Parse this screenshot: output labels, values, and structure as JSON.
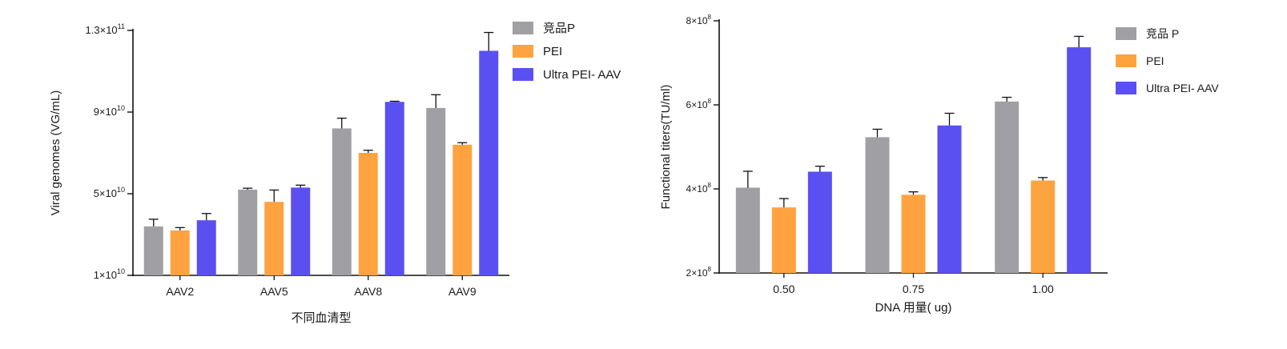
{
  "colors": {
    "series": [
      "#a0a0a4",
      "#ffa340",
      "#5a50f2"
    ],
    "axis": "#111111",
    "text": "#1a1a1a"
  },
  "chart_data": [
    {
      "type": "bar",
      "title": "",
      "xlabel": "不同血清型",
      "ylabel": "Viral genomes (VG/mL)",
      "categories": [
        "AAV2",
        "AAV5",
        "AAV8",
        "AAV9"
      ],
      "ylim": [
        10000000000,
        130000000000
      ],
      "y_ticks": [
        {
          "value": 10000000000,
          "mant": "1×10",
          "exp": "10"
        },
        {
          "value": 50000000000,
          "mant": "5×10",
          "exp": "10"
        },
        {
          "value": 90000000000,
          "mant": "9×10",
          "exp": "10"
        },
        {
          "value": 130000000000,
          "mant": "1.3×10",
          "exp": "11"
        }
      ],
      "legend_position": "top-right",
      "series": [
        {
          "name": "竞品P",
          "values": [
            34000000000,
            52000000000,
            82000000000,
            92000000000
          ],
          "errors": [
            3500000000,
            700000000,
            5000000000,
            6500000000
          ]
        },
        {
          "name": "PEI",
          "values": [
            32000000000,
            46000000000,
            70000000000,
            74000000000
          ],
          "errors": [
            1400000000,
            5800000000,
            1300000000,
            1000000000
          ]
        },
        {
          "name": "Ultra PEI- AAV",
          "values": [
            37000000000,
            53000000000,
            95000000000,
            120000000000
          ],
          "errors": [
            3300000000,
            1200000000,
            300000000,
            9000000000
          ]
        }
      ]
    },
    {
      "type": "bar",
      "title": "",
      "xlabel": "DNA 用量( ug)",
      "ylabel": "Functional titers(TU/ml)",
      "categories": [
        "0.50",
        "0.75",
        "1.00"
      ],
      "ylim": [
        200000000,
        800000000
      ],
      "y_ticks": [
        {
          "value": 200000000,
          "mant": "2×10",
          "exp": "8"
        },
        {
          "value": 400000000,
          "mant": "4×10",
          "exp": "8"
        },
        {
          "value": 600000000,
          "mant": "6×10",
          "exp": "8"
        },
        {
          "value": 800000000,
          "mant": "8×10",
          "exp": "8"
        }
      ],
      "legend_position": "top-right",
      "series": [
        {
          "name": "竞品 P",
          "values": [
            403000000,
            523000000,
            608000000
          ],
          "errors": [
            39000000,
            19000000,
            10000000
          ]
        },
        {
          "name": "PEI",
          "values": [
            356000000,
            386000000,
            420000000
          ],
          "errors": [
            21000000,
            7000000,
            7000000
          ]
        },
        {
          "name": "Ultra PEI- AAV",
          "values": [
            441000000,
            551000000,
            737000000
          ],
          "errors": [
            13000000,
            29000000,
            26000000
          ]
        }
      ]
    }
  ]
}
